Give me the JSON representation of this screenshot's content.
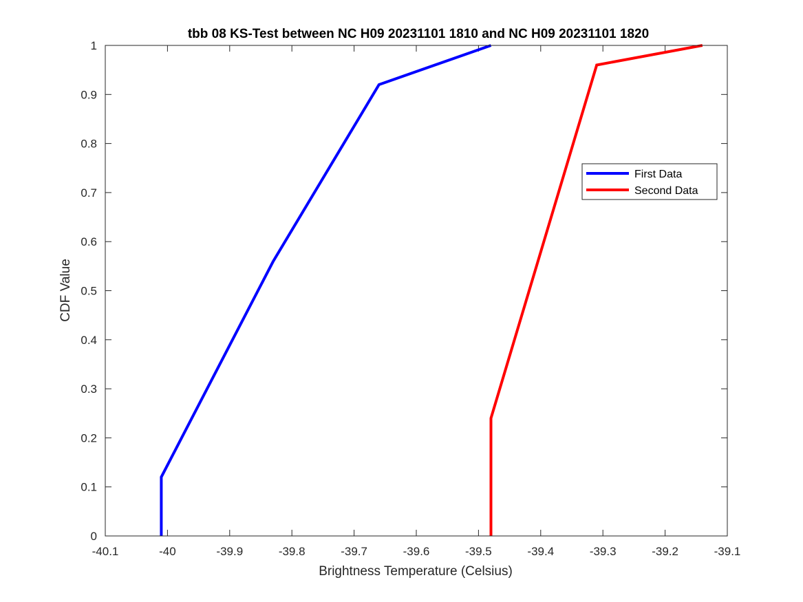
{
  "chart_data": {
    "type": "line",
    "title": "tbb 08 KS-Test between NC H09 20231101 1810 and NC H09 20231101 1820",
    "xlabel": "Brightness Temperature (Celsius)",
    "ylabel": "CDF Value",
    "xlim": [
      -40.1,
      -39.1
    ],
    "ylim": [
      0,
      1
    ],
    "xticks": [
      -40.1,
      -40,
      -39.9,
      -39.8,
      -39.7,
      -39.6,
      -39.5,
      -39.4,
      -39.3,
      -39.2,
      -39.1
    ],
    "xtick_labels": [
      "-40.1",
      "-40",
      "-39.9",
      "-39.8",
      "-39.7",
      "-39.6",
      "-39.5",
      "-39.4",
      "-39.3",
      "-39.2",
      "-39.1"
    ],
    "yticks": [
      0,
      0.1,
      0.2,
      0.3,
      0.4,
      0.5,
      0.6,
      0.7,
      0.8,
      0.9,
      1
    ],
    "ytick_labels": [
      "0",
      "0.1",
      "0.2",
      "0.3",
      "0.4",
      "0.5",
      "0.6",
      "0.7",
      "0.8",
      "0.9",
      "1"
    ],
    "grid": false,
    "legend_position": "top-right",
    "series": [
      {
        "name": "First Data",
        "color": "#0000ff",
        "x": [
          -40.01,
          -40.01,
          -39.83,
          -39.66,
          -39.48
        ],
        "y": [
          0,
          0.12,
          0.56,
          0.92,
          1.0
        ]
      },
      {
        "name": "Second Data",
        "color": "#ff0000",
        "x": [
          -39.48,
          -39.48,
          -39.31,
          -39.14
        ],
        "y": [
          0,
          0.24,
          0.96,
          1.0
        ]
      }
    ]
  }
}
